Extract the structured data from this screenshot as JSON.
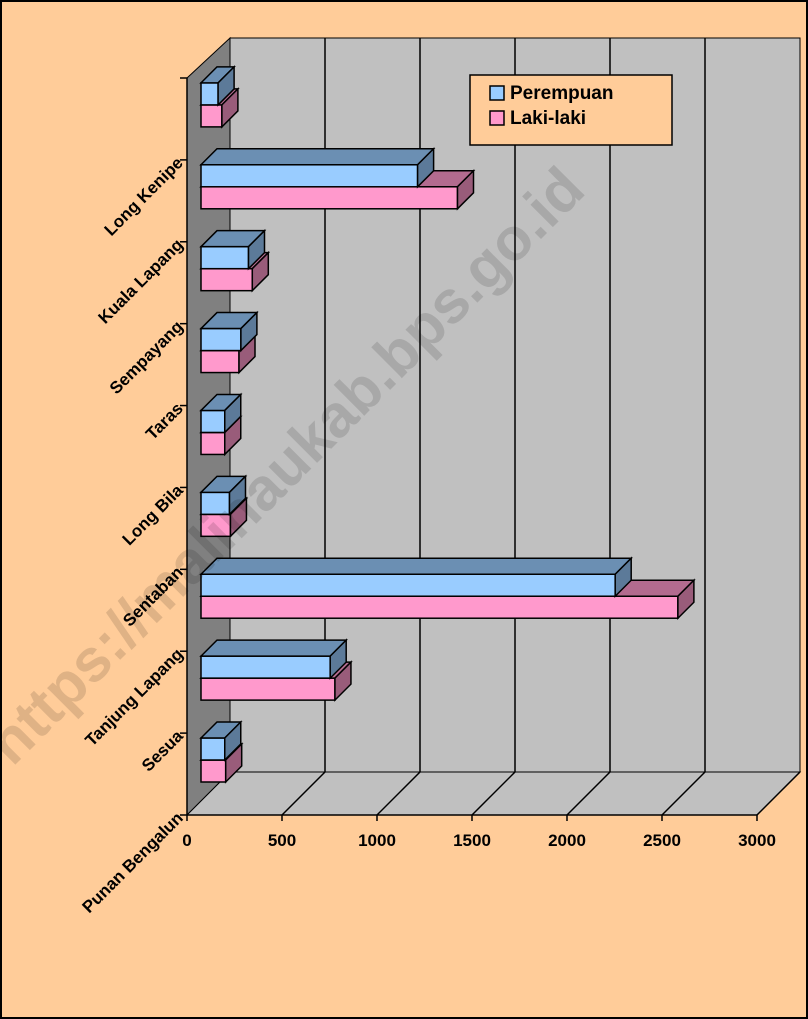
{
  "chart_data": {
    "type": "bar3d_horizontal",
    "watermark": "https://malinaukab.bps.go.id",
    "categories": [
      "Punan Bengalun",
      "Sesua",
      "Tanjung Lapang",
      "Sentaban",
      "Long Bila",
      "Taras",
      "Sempayang",
      "Kuala Lapang",
      "Long Kenipe"
    ],
    "series": [
      {
        "name": "Perempuan",
        "color": "#99ccff",
        "values": [
          125,
          680,
          2180,
          150,
          125,
          210,
          250,
          1140,
          90
        ]
      },
      {
        "name": "Laki-laki",
        "color": "#ff99cc",
        "values": [
          130,
          705,
          2510,
          155,
          125,
          200,
          270,
          1350,
          110
        ]
      }
    ],
    "xlim": [
      0,
      3000
    ],
    "xticks": [
      0,
      500,
      1000,
      1500,
      2000,
      2500,
      3000
    ],
    "grid": true,
    "legend": "top-right"
  }
}
